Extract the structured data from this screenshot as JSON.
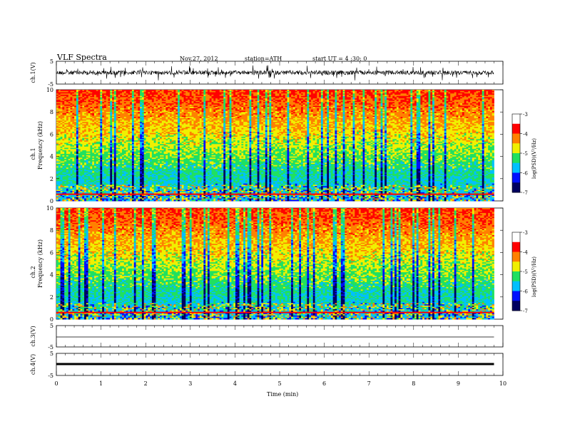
{
  "header": {
    "title": "VLF  Spectra",
    "date": "Nov.27, 2012",
    "station": "station=ATH",
    "start": "start  UT  =   4  :30: 0"
  },
  "colorbar_label": "log(PSD)(V²/Hz)",
  "colors": {
    "low": "#000060",
    "blue": "#0010ff",
    "cyan": "#00c0ff",
    "green": "#20e060",
    "yellow": "#f0f000",
    "orange": "#ff8000",
    "red": "#ff0000",
    "high": "#ffffff"
  },
  "chart_data": [
    {
      "type": "line",
      "panel": "ch1-waveform",
      "ylabel": "ch.1(V)",
      "ylim": [
        -5,
        5
      ],
      "y_ticks": [
        "5",
        "-5"
      ],
      "series": [
        {
          "description_values": [
            0.2,
            1.4,
            -1.3,
            2.1,
            -2.4,
            0.8,
            -0.6
          ]
        }
      ]
    },
    {
      "type": "heatmap",
      "panel": "ch1-spectrogram",
      "ylabel": "ch.1\nFrequency (kHz)",
      "ylim": [
        0,
        10
      ],
      "y_ticks": [
        "0",
        "2",
        "4",
        "6",
        "8",
        "10"
      ],
      "colorbar": {
        "range": [
          -7,
          -3
        ],
        "ticks": [
          "-3",
          "-4",
          "-5",
          "-6",
          "-7"
        ]
      }
    },
    {
      "type": "heatmap",
      "panel": "ch2-spectrogram",
      "ylabel": "ch.2\nFrequency (kHz)",
      "ylim": [
        0,
        10
      ],
      "y_ticks": [
        "0",
        "2",
        "4",
        "6",
        "8",
        "10"
      ],
      "colorbar": {
        "range": [
          -7,
          -3
        ],
        "ticks": [
          "-3",
          "-4",
          "-5",
          "-6",
          "-7"
        ]
      }
    },
    {
      "type": "line",
      "panel": "ch3-waveform",
      "ylabel": "ch.3(V)",
      "ylim": [
        -5,
        5
      ],
      "y_ticks": [
        "5",
        "-5"
      ],
      "series": [
        {
          "values_const": 0
        }
      ]
    },
    {
      "type": "line",
      "panel": "ch4-waveform",
      "ylabel": "ch.4(V)",
      "ylim": [
        -5,
        5
      ],
      "y_ticks": [
        "5",
        "-5"
      ],
      "series": [
        {
          "values_const": 0
        }
      ]
    }
  ],
  "xaxis": {
    "label": "Time  (min)",
    "xlim": [
      0,
      10
    ],
    "ticks": [
      "0",
      "1",
      "2",
      "3",
      "4",
      "5",
      "6",
      "7",
      "8",
      "9",
      "10"
    ],
    "data_end": 9.8
  }
}
